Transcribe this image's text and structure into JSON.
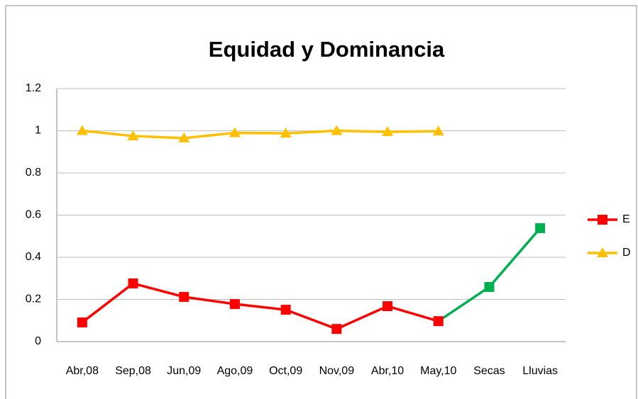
{
  "chart_data": {
    "type": "line",
    "title": "Equidad y Dominancia",
    "categories": [
      "Abr,08",
      "Sep,08",
      "Jun,09",
      "Ago,09",
      "Oct,09",
      "Nov,09",
      "Abr,10",
      "May,10",
      "Secas",
      "Lluvias"
    ],
    "series": [
      {
        "name": "E",
        "color": "#ff0000",
        "marker": "square",
        "point_colors": [
          "#ff0000",
          "#ff0000",
          "#ff0000",
          "#ff0000",
          "#ff0000",
          "#ff0000",
          "#ff0000",
          "#ff0000",
          "#00b050",
          "#00b050"
        ],
        "values": [
          0.091,
          0.276,
          0.212,
          0.178,
          0.151,
          0.06,
          0.168,
          0.097,
          0.259,
          0.538
        ]
      },
      {
        "name": "D",
        "color": "#ffc000",
        "marker": "triangle",
        "values": [
          1.0,
          0.975,
          0.965,
          0.99,
          0.988,
          1.0,
          0.995,
          0.998,
          null,
          null
        ]
      }
    ],
    "ylim": [
      0,
      1.2
    ],
    "yticks": [
      0,
      0.2,
      0.4,
      0.6,
      0.8,
      1,
      1.2
    ],
    "grid": true,
    "legend": "right"
  }
}
